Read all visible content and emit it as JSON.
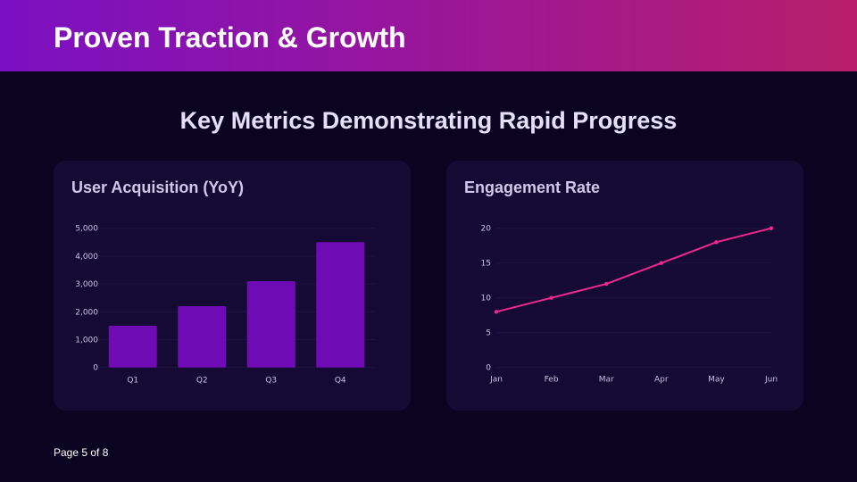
{
  "header": {
    "title": "Proven Traction & Growth"
  },
  "subtitle": "Key Metrics Demonstrating Rapid Progress",
  "footer": {
    "page": "Page 5 of 8"
  },
  "colors": {
    "bar": "#6e0bb5",
    "line": "#f0288c"
  },
  "chart_data": [
    {
      "type": "bar",
      "title": "User Acquisition (YoY)",
      "categories": [
        "Q1",
        "Q2",
        "Q3",
        "Q4"
      ],
      "values": [
        1500,
        2200,
        3100,
        4500
      ],
      "ylim": [
        0,
        5000
      ],
      "yticks": [
        0,
        1000,
        2000,
        3000,
        4000,
        5000
      ],
      "ytick_labels": [
        "0",
        "1,000",
        "2,000",
        "3,000",
        "4,000",
        "5,000"
      ],
      "grid": true
    },
    {
      "type": "line",
      "title": "Engagement Rate",
      "categories": [
        "Jan",
        "Feb",
        "Mar",
        "Apr",
        "May",
        "Jun"
      ],
      "values": [
        8,
        10,
        12,
        15,
        18,
        20
      ],
      "ylim": [
        0,
        20
      ],
      "yticks": [
        0,
        5,
        10,
        15,
        20
      ],
      "ytick_labels": [
        "0",
        "5",
        "10",
        "15",
        "20"
      ],
      "grid": true
    }
  ]
}
